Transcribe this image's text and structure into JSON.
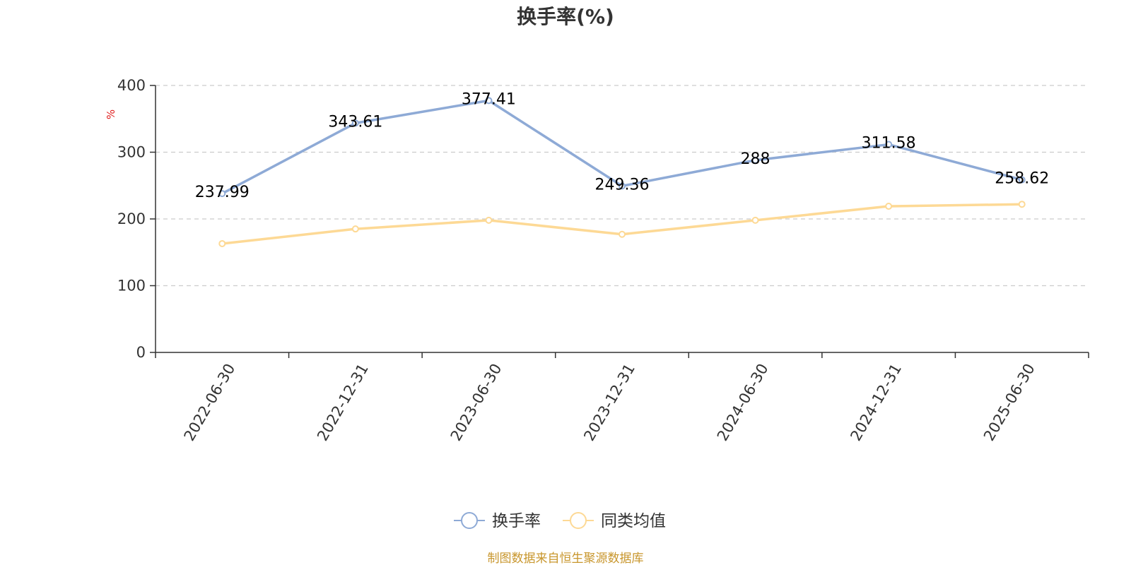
{
  "chart_data": {
    "type": "line",
    "title": "换手率(%)",
    "ylabel": "%",
    "ylim": [
      0,
      400
    ],
    "yticks": [
      0,
      100,
      200,
      300,
      400
    ],
    "categories": [
      "2022-06-30",
      "2022-12-31",
      "2023-06-30",
      "2023-12-31",
      "2024-06-30",
      "2024-12-31",
      "2025-06-30"
    ],
    "series": [
      {
        "name": "换手率",
        "color": "#8eaad6",
        "values": [
          237.99,
          343.61,
          377.41,
          249.36,
          288,
          311.58,
          258.62
        ],
        "labels": [
          "237.99",
          "343.61",
          "377.41",
          "249.36",
          "288",
          "311.58",
          "258.62"
        ],
        "show_labels": true
      },
      {
        "name": "同类均值",
        "color": "#fdd995",
        "values": [
          163,
          185,
          198,
          177,
          198,
          219,
          222
        ],
        "show_labels": false
      }
    ],
    "grid": true,
    "legend_position": "bottom-center",
    "source": "制图数据来自恒生聚源数据库",
    "source_color": "#c8962c",
    "unit_color": "#e02020"
  }
}
